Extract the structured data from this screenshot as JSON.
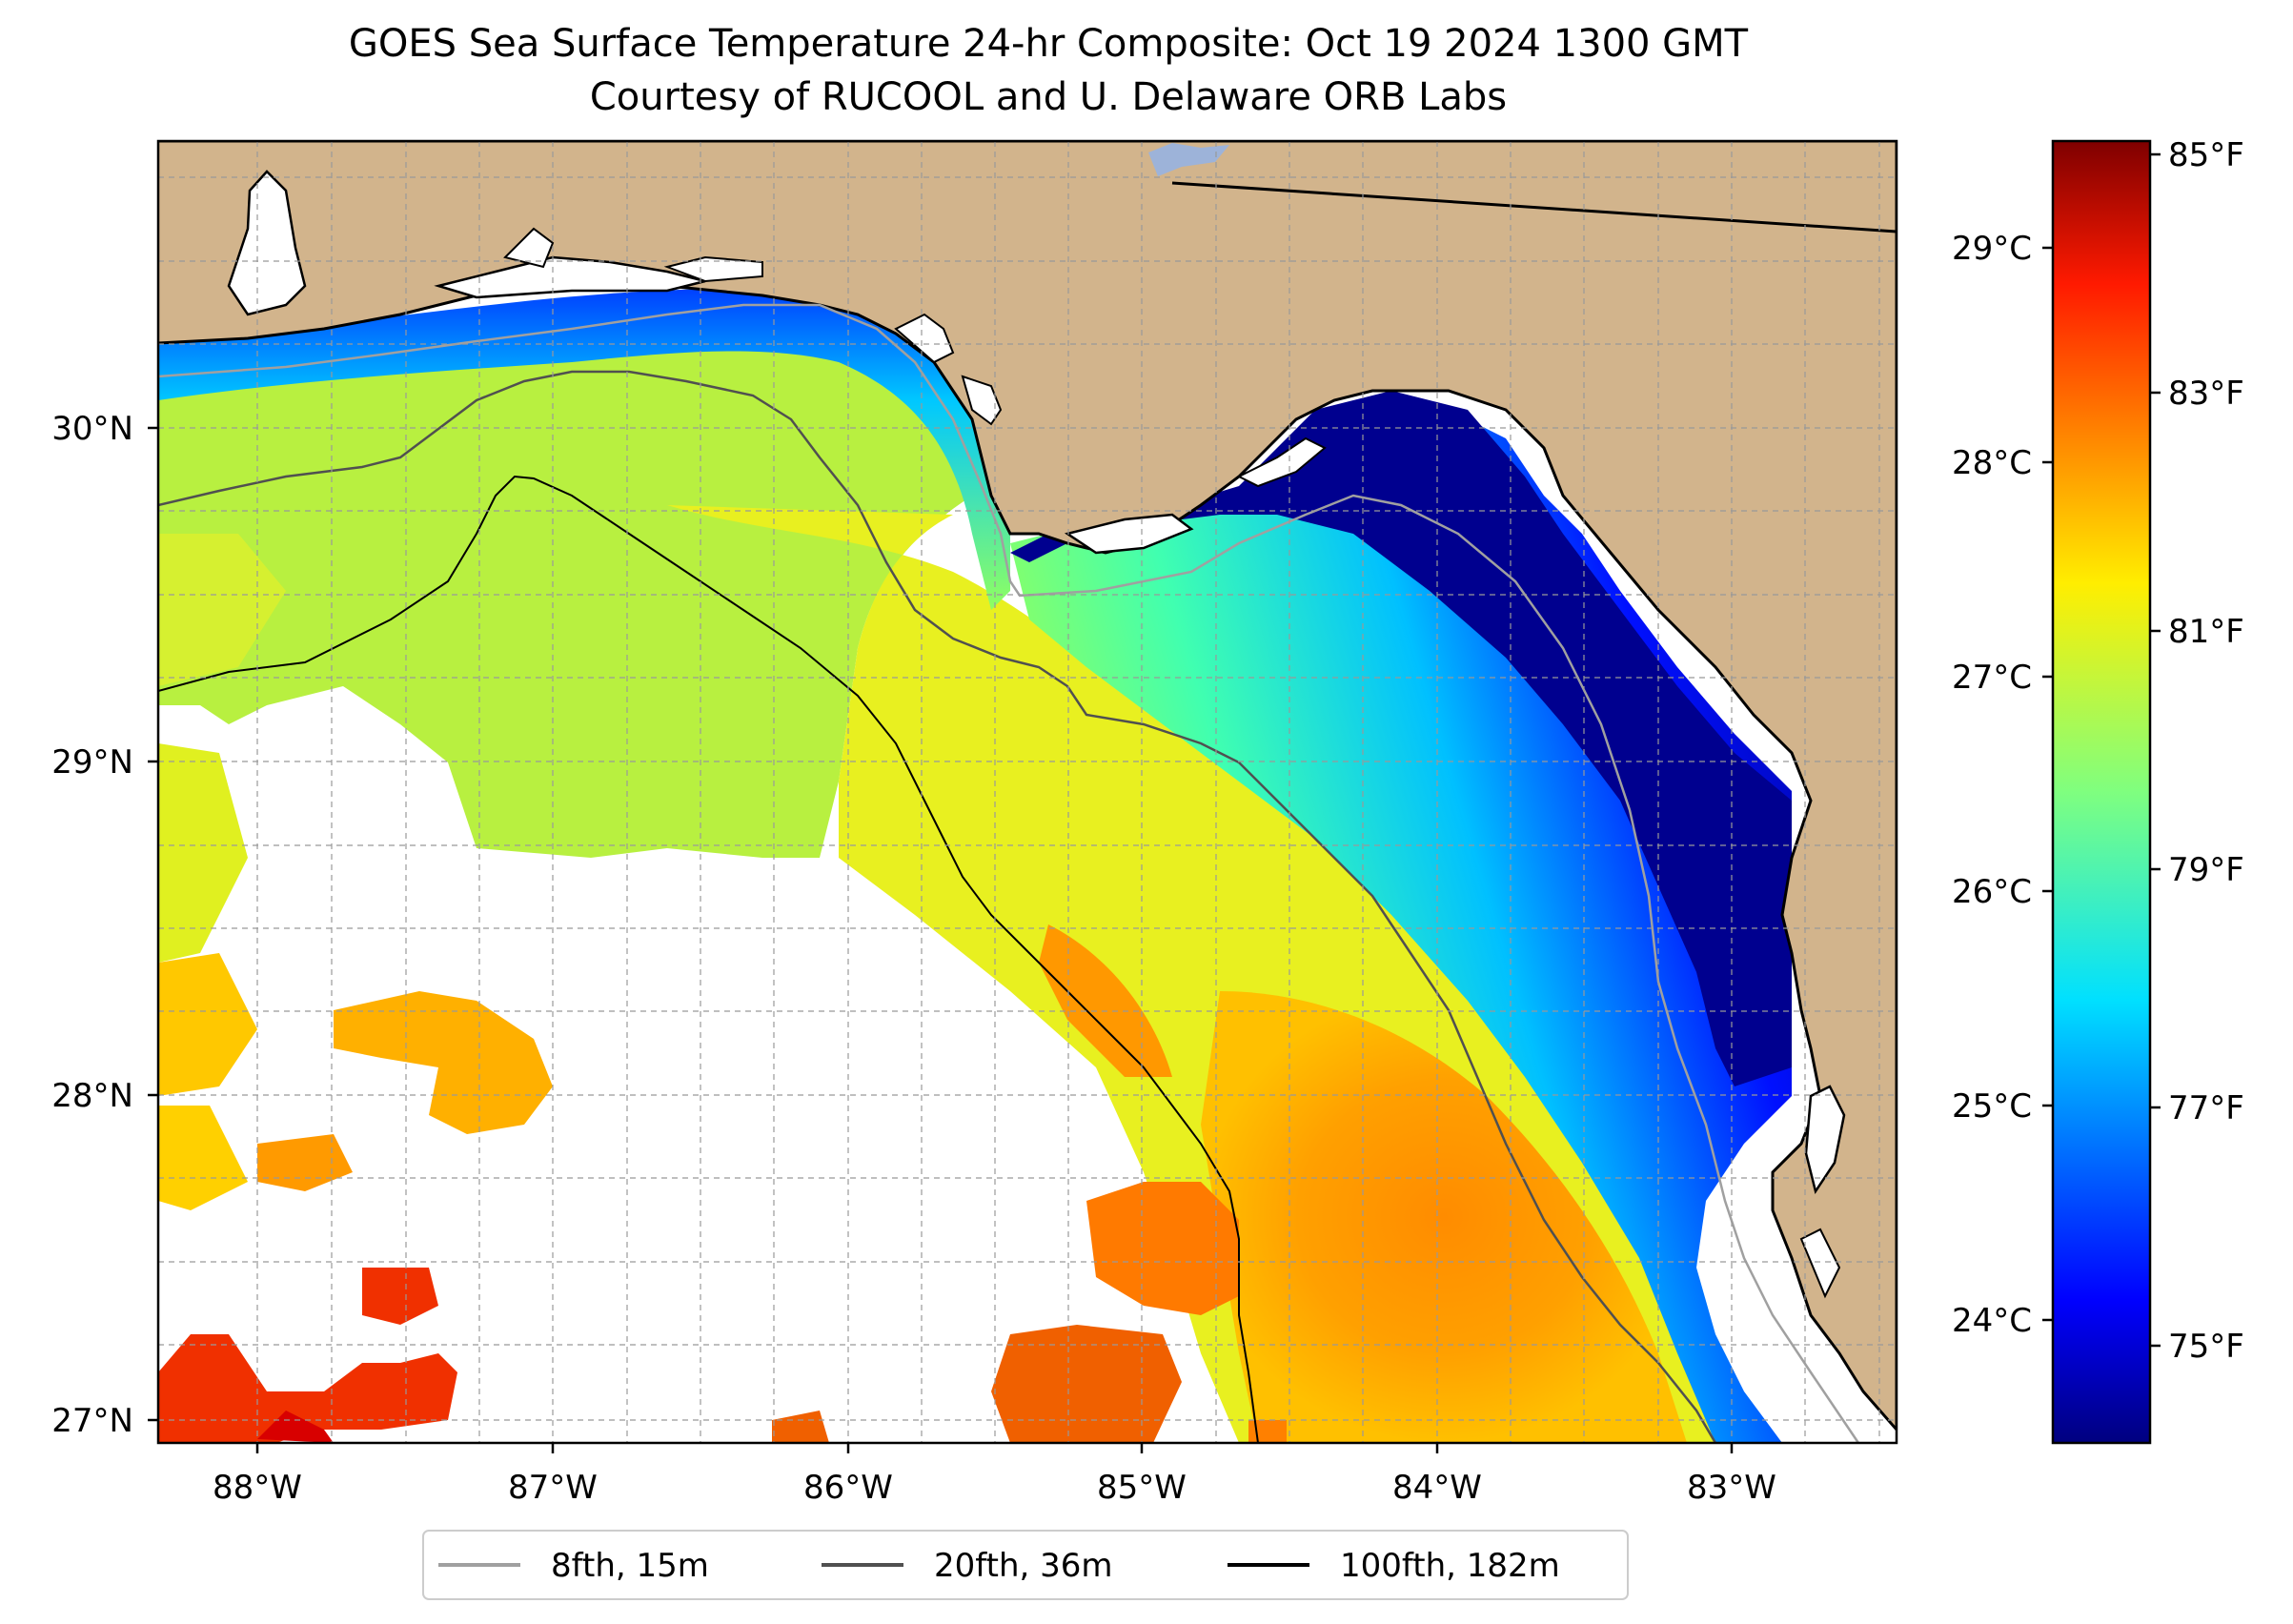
{
  "title": "GOES Sea Surface Temperature 24-hr Composite: Oct 19 2024 1300 GMT",
  "subtitle": "Courtesy of RUCOOL and U. Delaware ORB Labs",
  "map": {
    "lon_ticks": [
      "88°W",
      "87°W",
      "86°W",
      "85°W",
      "84°W",
      "83°W"
    ],
    "lat_ticks": [
      "30°N",
      "29°N",
      "28°N",
      "27°N"
    ],
    "grid": true,
    "colors": {
      "land": "#d2b48c",
      "coast": "#000000",
      "grid": "#999999",
      "lake": "#9db3d9"
    }
  },
  "colorbar": {
    "colormap": "jet",
    "celsius_ticks": [
      "29°C",
      "28°C",
      "27°C",
      "26°C",
      "25°C",
      "24°C"
    ],
    "fahrenheit_ticks": [
      "85°F",
      "83°F",
      "81°F",
      "79°F",
      "77°F",
      "75°F"
    ]
  },
  "legend": {
    "placement": "bottom-center",
    "items": [
      {
        "label": "8fth, 15m",
        "color": "#a0a0a0"
      },
      {
        "label": "20fth, 36m",
        "color": "#505050"
      },
      {
        "label": "100fth, 182m",
        "color": "#000000"
      }
    ]
  }
}
